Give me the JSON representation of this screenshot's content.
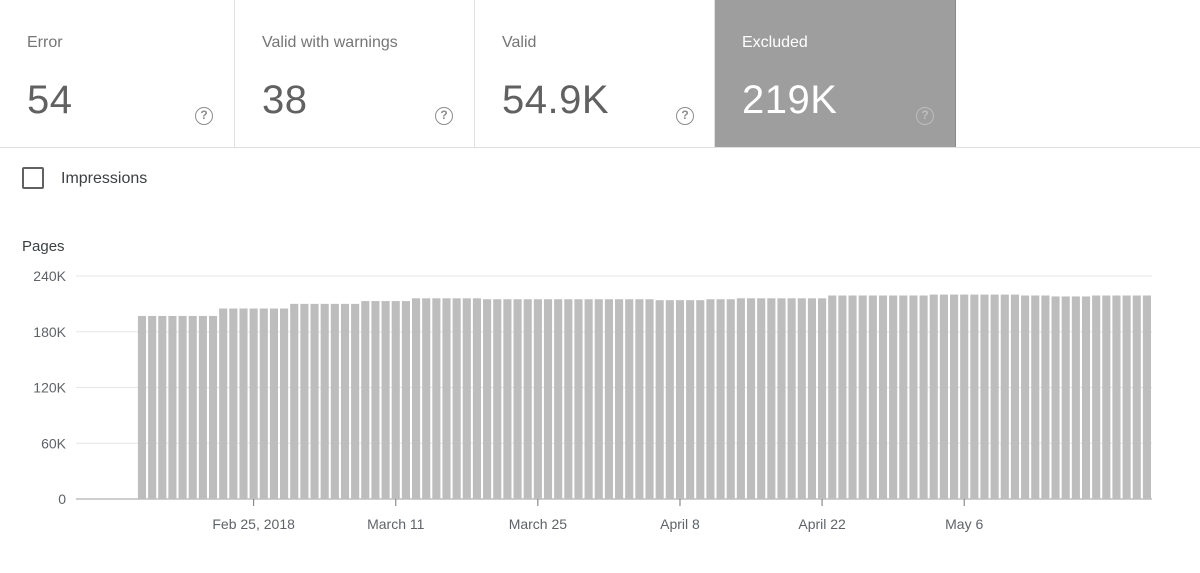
{
  "tiles": [
    {
      "label": "Error",
      "value": "54",
      "selected": false
    },
    {
      "label": "Valid with warnings",
      "value": "38",
      "selected": false
    },
    {
      "label": "Valid",
      "value": "54.9K",
      "selected": false
    },
    {
      "label": "Excluded",
      "value": "219K",
      "selected": true
    }
  ],
  "help_icon_glyph": "?",
  "impressions": {
    "label": "Impressions",
    "checked": false
  },
  "chart_data": {
    "type": "bar",
    "ylabel": "Pages",
    "ylim": [
      0,
      240000
    ],
    "y_ticks": [
      {
        "value": 0,
        "label": "0"
      },
      {
        "value": 60000,
        "label": "60K"
      },
      {
        "value": 120000,
        "label": "120K"
      },
      {
        "value": 180000,
        "label": "180K"
      },
      {
        "value": 240000,
        "label": "240K"
      }
    ],
    "x_ticks": [
      "Feb 25, 2018",
      "March 11",
      "March 25",
      "April 8",
      "April 22",
      "May 6"
    ],
    "bar_color": "#bdbdbd",
    "grid": true,
    "values": [
      0,
      0,
      0,
      0,
      0,
      0,
      197000,
      197000,
      197000,
      197000,
      197000,
      197000,
      197000,
      197000,
      205000,
      205000,
      205000,
      205000,
      205000,
      205000,
      205000,
      210000,
      210000,
      210000,
      210000,
      210000,
      210000,
      210000,
      213000,
      213000,
      213000,
      213000,
      213000,
      216000,
      216000,
      216000,
      216000,
      216000,
      216000,
      216000,
      215000,
      215000,
      215000,
      215000,
      215000,
      215000,
      215000,
      215000,
      215000,
      215000,
      215000,
      215000,
      215000,
      215000,
      215000,
      215000,
      215000,
      214000,
      214000,
      214000,
      214000,
      214000,
      215000,
      215000,
      215000,
      216000,
      216000,
      216000,
      216000,
      216000,
      216000,
      216000,
      216000,
      216000,
      219000,
      219000,
      219000,
      219000,
      219000,
      219000,
      219000,
      219000,
      219000,
      219000,
      220000,
      220000,
      220000,
      220000,
      220000,
      220000,
      220000,
      220000,
      220000,
      219000,
      219000,
      219000,
      218000,
      218000,
      218000,
      218000,
      219000,
      219000,
      219000,
      219000,
      219000,
      219000
    ]
  }
}
